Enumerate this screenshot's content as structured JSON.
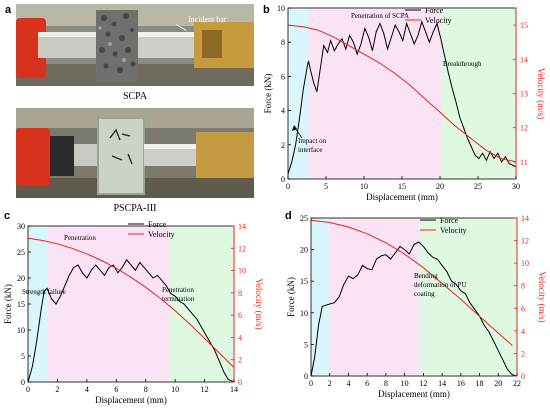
{
  "panels": {
    "a": {
      "letter": "a",
      "photo1_caption": "SCPA",
      "photo1_label": "Incident bar",
      "photo2_caption": "PSCPA-III"
    },
    "b": {
      "letter": "b"
    },
    "c": {
      "letter": "c"
    },
    "d": {
      "letter": "d"
    }
  },
  "colors": {
    "force": "#000000",
    "velocity": "#e8231b",
    "cyan_zone": "#d8f6fb",
    "pink_zone": "#fbe3f6",
    "green_zone": "#def8e2"
  },
  "chart_data": [
    {
      "id": "b",
      "type": "line",
      "xlabel": "Displacement (mm)",
      "ylabel_left": "Force (kN)",
      "ylabel_right": "Velocity (m/s)",
      "xlim": [
        0,
        30
      ],
      "ylim_left": [
        0,
        10
      ],
      "ylim_right": [
        10.5,
        15.5
      ],
      "xticks": [
        0,
        5,
        10,
        15,
        20,
        25,
        30
      ],
      "yticks_left": [
        0,
        2,
        4,
        6,
        8,
        10
      ],
      "yticks_right": [
        11,
        12,
        13,
        14,
        15
      ],
      "zones": [
        [
          0,
          2.7,
          "cyan"
        ],
        [
          2.7,
          20.2,
          "pink"
        ],
        [
          20.2,
          30,
          "green"
        ]
      ],
      "legend": [
        "Force",
        "Velocity"
      ],
      "annotations": {
        "penetration": "Penetration of SCPA",
        "impact": "Impact on interface",
        "breakthrough": "Breakthrough"
      },
      "series": [
        {
          "name": "Force",
          "axis": "left",
          "x": [
            0,
            0.5,
            1,
            1.5,
            2,
            2.5,
            2.7,
            3,
            3.4,
            3.8,
            4.2,
            4.7,
            5.2,
            5.6,
            6.1,
            6.6,
            7.1,
            7.6,
            8.1,
            8.6,
            9.1,
            9.6,
            10.1,
            10.6,
            11.1,
            11.6,
            12.1,
            12.6,
            13.1,
            13.6,
            14.1,
            14.6,
            15.1,
            15.6,
            16.1,
            16.6,
            17.1,
            17.6,
            18.1,
            18.6,
            19.1,
            19.6,
            20.1,
            20.6,
            21.1,
            21.6,
            22.1,
            22.6,
            23.1,
            23.6,
            24.1,
            24.6,
            25.1,
            25.6,
            26.1,
            26.6,
            27.1,
            27.6,
            28.1,
            28.6,
            29.1,
            29.6,
            30
          ],
          "y": [
            0.3,
            1.0,
            2.0,
            3.5,
            5.2,
            6.5,
            6.9,
            6.3,
            5.6,
            5.1,
            6.3,
            7.8,
            7.4,
            8.1,
            7.5,
            7.9,
            8.2,
            7.6,
            8.4,
            8.0,
            7.3,
            7.9,
            8.8,
            8.3,
            7.5,
            8.6,
            9.1,
            8.5,
            7.6,
            8.3,
            9.0,
            8.6,
            8.1,
            9.1,
            8.5,
            7.9,
            8.4,
            9.2,
            8.6,
            8.0,
            8.6,
            9.1,
            8.2,
            7.2,
            6.2,
            5.3,
            4.5,
            3.6,
            3.0,
            2.4,
            1.9,
            1.4,
            1.2,
            1.5,
            1.1,
            1.6,
            1.2,
            1.5,
            1.0,
            1.3,
            0.9,
            0.8,
            0.7
          ]
        },
        {
          "name": "Velocity",
          "axis": "right",
          "x": [
            0,
            2,
            4,
            6,
            8,
            10,
            12,
            14,
            16,
            18,
            20,
            22,
            24,
            26,
            28,
            30
          ],
          "y": [
            15.0,
            14.95,
            14.85,
            14.65,
            14.4,
            14.15,
            13.9,
            13.6,
            13.25,
            12.85,
            12.45,
            12.05,
            11.7,
            11.35,
            11.1,
            11.0
          ]
        }
      ]
    },
    {
      "id": "c",
      "type": "line",
      "xlabel": "Displacement (mm)",
      "ylabel_left": "Force (kN)",
      "ylabel_right": "Velocity (m/s)",
      "xlim": [
        0,
        14
      ],
      "ylim_left": [
        0,
        30
      ],
      "ylim_right": [
        0,
        14
      ],
      "xticks": [
        0,
        2,
        4,
        6,
        8,
        10,
        12,
        14
      ],
      "yticks_left": [
        0,
        5,
        10,
        15,
        20,
        25,
        30
      ],
      "yticks_right": [
        0,
        2,
        4,
        6,
        8,
        10,
        12,
        14
      ],
      "zones": [
        [
          0,
          1.3,
          "cyan"
        ],
        [
          1.3,
          9.6,
          "pink"
        ],
        [
          9.6,
          14,
          "green"
        ]
      ],
      "legend": [
        "Force",
        "Velocity"
      ],
      "annotations": {
        "penetration": "Penetration",
        "strength": "Strength failure",
        "termination": "Penetration termination"
      },
      "series": [
        {
          "name": "Force",
          "axis": "left",
          "x": [
            0,
            0.3,
            0.6,
            0.9,
            1.1,
            1.3,
            1.6,
            1.9,
            2.2,
            2.5,
            2.8,
            3.1,
            3.4,
            3.7,
            4.0,
            4.3,
            4.6,
            4.9,
            5.2,
            5.5,
            5.8,
            6.1,
            6.4,
            6.7,
            7.0,
            7.3,
            7.6,
            7.9,
            8.2,
            8.5,
            8.8,
            9.1,
            9.4,
            9.7,
            10.0,
            10.3,
            10.6,
            10.9,
            11.2,
            11.5,
            11.8,
            12.1,
            12.4,
            12.7,
            13.0,
            13.3,
            13.6,
            14.0
          ],
          "y": [
            0,
            3,
            8,
            14,
            17.5,
            18,
            16,
            15,
            16.5,
            18.5,
            20.5,
            22,
            22.5,
            21,
            20,
            21.5,
            22.5,
            21.5,
            20.5,
            22,
            22.5,
            21,
            22,
            23.5,
            22.5,
            21.5,
            23,
            22,
            21,
            20,
            20.5,
            19.5,
            18.5,
            17,
            16.5,
            15.5,
            15,
            14,
            13,
            12,
            10.5,
            9,
            7.5,
            6,
            4,
            2,
            0.5,
            0
          ]
        },
        {
          "name": "Velocity",
          "axis": "right",
          "x": [
            0,
            1,
            2,
            3,
            4,
            5,
            6,
            7,
            8,
            9,
            10,
            11,
            12,
            13,
            14
          ],
          "y": [
            12.9,
            12.7,
            12.4,
            12.0,
            11.5,
            10.9,
            10.2,
            9.4,
            8.5,
            7.5,
            6.4,
            5.2,
            3.9,
            2.6,
            1.3
          ]
        }
      ]
    },
    {
      "id": "d",
      "type": "line",
      "xlabel": "Displacement (mm)",
      "ylabel_left": "Force (kN)",
      "ylabel_right": "Velocity (m/s)",
      "xlim": [
        0,
        22
      ],
      "ylim_left": [
        0,
        25
      ],
      "ylim_right": [
        0,
        14
      ],
      "xticks": [
        0,
        2,
        4,
        6,
        8,
        10,
        12,
        14,
        16,
        18,
        20,
        22
      ],
      "yticks_left": [
        0,
        5,
        10,
        15,
        20,
        25
      ],
      "yticks_right": [
        0,
        2,
        4,
        6,
        8,
        10,
        12,
        14
      ],
      "zones": [
        [
          0,
          1.9,
          "cyan"
        ],
        [
          1.9,
          11.5,
          "pink"
        ],
        [
          11.5,
          22,
          "green"
        ]
      ],
      "legend": [
        "Force",
        "Velocity"
      ],
      "annotations": {
        "bending": "Bending deformation of PU coating"
      },
      "series": [
        {
          "name": "Force",
          "axis": "left",
          "x": [
            0,
            0.4,
            0.8,
            1.2,
            1.6,
            2.0,
            2.5,
            3.0,
            3.5,
            4.0,
            4.5,
            5.0,
            5.5,
            6.0,
            6.5,
            7.0,
            7.5,
            8.0,
            8.5,
            9.0,
            9.5,
            10.0,
            10.5,
            11.0,
            11.5,
            12.0,
            12.5,
            13.0,
            13.5,
            14.0,
            14.5,
            15.0,
            15.5,
            16.0,
            16.5,
            17.0,
            17.5,
            18.0,
            18.5,
            19.0,
            19.5,
            20.0,
            20.5,
            21.0,
            21.5,
            22.0
          ],
          "y": [
            0,
            3,
            8,
            11,
            11.2,
            11.4,
            11.6,
            12.5,
            14.5,
            15.8,
            15.4,
            16,
            17.5,
            17,
            16.8,
            18.5,
            19,
            19.2,
            18.5,
            19.5,
            20.5,
            20,
            19.3,
            20.8,
            21.2,
            20.5,
            19.5,
            18.8,
            18.5,
            17.5,
            16.5,
            15,
            14.5,
            13.5,
            13,
            11.5,
            10.5,
            9.5,
            8,
            7,
            5.5,
            4,
            2.5,
            1,
            0.2,
            0
          ]
        },
        {
          "name": "Velocity",
          "axis": "right",
          "x": [
            0,
            2,
            4,
            6,
            8,
            10,
            12,
            14,
            16,
            18,
            20,
            21.5
          ],
          "y": [
            13.8,
            13.6,
            13.2,
            12.6,
            11.8,
            10.8,
            9.6,
            8.2,
            6.8,
            5.3,
            3.8,
            2.7
          ]
        }
      ]
    }
  ]
}
